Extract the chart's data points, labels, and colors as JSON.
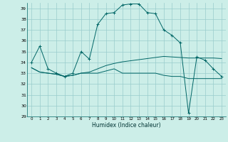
{
  "xlabel": "Humidex (Indice chaleur)",
  "background_color": "#cceee8",
  "grid_color": "#99cccc",
  "line_color": "#006666",
  "ylim": [
    29,
    39.5
  ],
  "xlim": [
    -0.5,
    23.5
  ],
  "yticks": [
    29,
    30,
    31,
    32,
    33,
    34,
    35,
    36,
    37,
    38,
    39
  ],
  "xticks": [
    0,
    1,
    2,
    3,
    4,
    5,
    6,
    7,
    8,
    9,
    10,
    11,
    12,
    13,
    14,
    15,
    16,
    17,
    18,
    19,
    20,
    21,
    22,
    23
  ],
  "series1": [
    34.0,
    35.5,
    33.4,
    33.0,
    32.7,
    33.0,
    35.0,
    34.3,
    37.5,
    38.5,
    38.6,
    39.3,
    39.4,
    39.4,
    38.6,
    38.5,
    37.0,
    36.5,
    35.8,
    29.3,
    34.5,
    34.2,
    33.4,
    32.7
  ],
  "series2": [
    33.5,
    33.1,
    33.0,
    32.9,
    32.7,
    32.8,
    33.0,
    33.0,
    33.0,
    33.2,
    33.4,
    33.0,
    33.0,
    33.0,
    33.0,
    33.0,
    32.8,
    32.7,
    32.7,
    32.5,
    32.5,
    32.5,
    32.5,
    32.5
  ],
  "series3": [
    33.5,
    33.1,
    33.0,
    32.9,
    32.7,
    32.8,
    33.0,
    33.1,
    33.4,
    33.7,
    33.9,
    34.05,
    34.15,
    34.25,
    34.35,
    34.45,
    34.55,
    34.5,
    34.45,
    34.4,
    34.4,
    34.4,
    34.4,
    34.35
  ]
}
